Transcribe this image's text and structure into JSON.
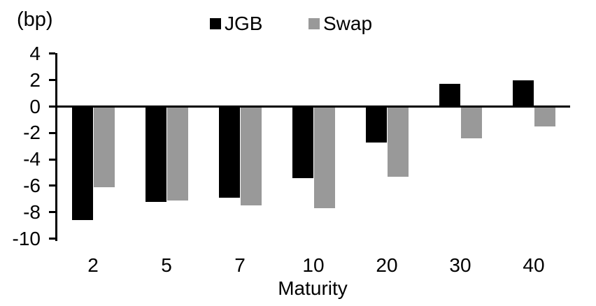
{
  "chart": {
    "unit_label": "(bp)",
    "colors": {
      "jgb": "#000000",
      "swap": "#999999",
      "axis": "#000000",
      "background": "#ffffff"
    }
  },
  "chart_data": {
    "type": "bar",
    "title": "",
    "categories": [
      "2",
      "5",
      "7",
      "10",
      "20",
      "30",
      "40"
    ],
    "series": [
      {
        "name": "JGB",
        "color": "#000000",
        "values": [
          -8.6,
          -7.2,
          -6.9,
          -5.4,
          -2.7,
          1.7,
          2.0
        ]
      },
      {
        "name": "Swap",
        "color": "#999999",
        "values": [
          -6.1,
          -7.1,
          -7.5,
          -7.7,
          -5.3,
          -2.4,
          -1.5
        ]
      }
    ],
    "xlabel": "Maturity",
    "ylabel": "(bp)",
    "ylim": [
      -10,
      4
    ],
    "y_ticks": [
      4,
      2,
      0,
      -2,
      -4,
      -6,
      -8,
      -10
    ],
    "grid": false,
    "legend_position": "top"
  }
}
